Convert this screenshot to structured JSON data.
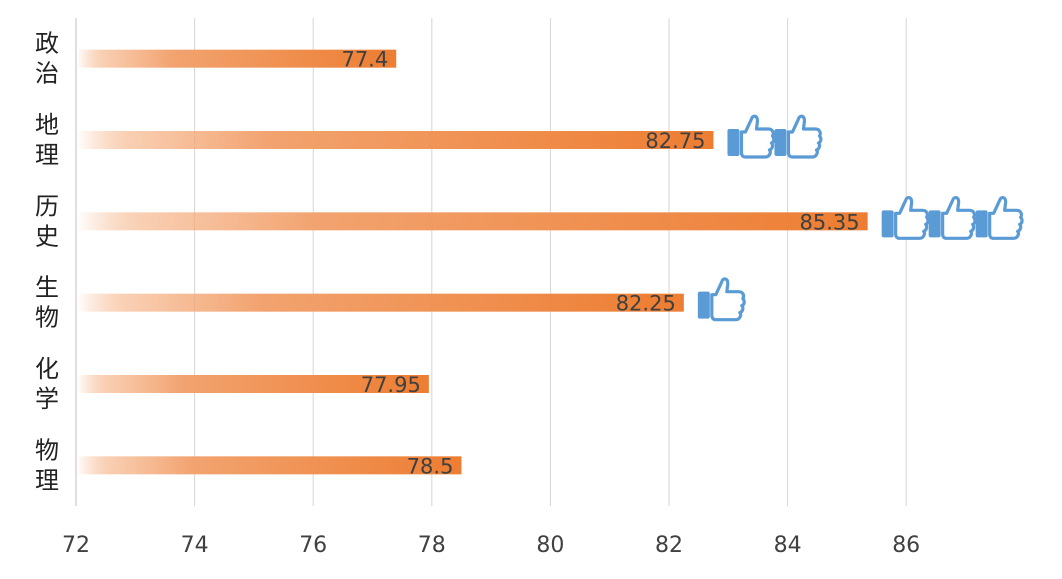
{
  "chart_data": {
    "type": "bar",
    "orientation": "horizontal",
    "categories": [
      "政治",
      "地理",
      "历史",
      "生物",
      "化学",
      "物理"
    ],
    "values": [
      77.4,
      82.75,
      85.35,
      82.25,
      77.95,
      78.5
    ],
    "data_labels": [
      "77.4",
      "82.75",
      "85.35",
      "82.25",
      "77.95",
      "78.5"
    ],
    "thumbs_up": [
      0,
      2,
      3,
      1,
      0,
      0
    ],
    "x_ticks": [
      72,
      74,
      76,
      78,
      80,
      82,
      84,
      86
    ],
    "x_tick_labels": [
      "72",
      "74",
      "76",
      "78",
      "80",
      "82",
      "84",
      "86"
    ],
    "xlim": [
      72,
      88
    ],
    "grid": true,
    "title": "",
    "xlabel": "",
    "ylabel": "",
    "bar_color": "#ED7D31",
    "icon_color": "#5B9BD5",
    "icon": "thumbs-up-icon"
  }
}
